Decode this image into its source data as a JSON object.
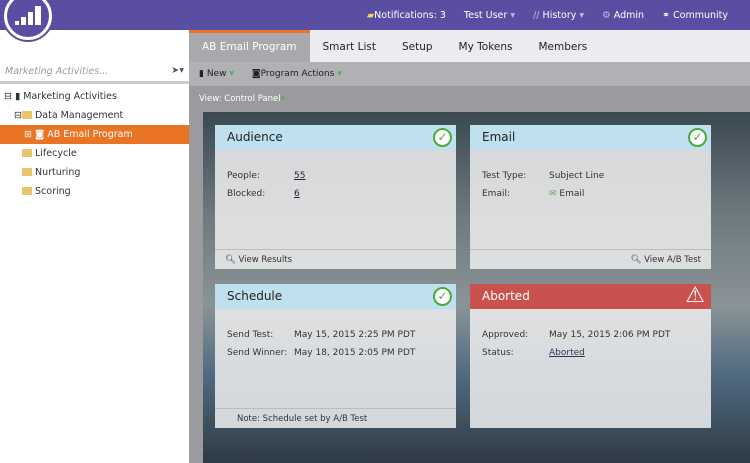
{
  "topnav": {
    "notifications": "Notifications: 3",
    "user": "Test User",
    "history": "History",
    "admin": "Admin",
    "community": "Community"
  },
  "sidebar": {
    "search_placeholder": "Marketing Activities...",
    "items": [
      {
        "label": "Marketing Activities"
      },
      {
        "label": "Data Management"
      },
      {
        "label": "AB Email Program"
      },
      {
        "label": "Lifecycle"
      },
      {
        "label": "Nurturing"
      },
      {
        "label": "Scoring"
      }
    ]
  },
  "tabs": [
    "AB Email Program",
    "Smart List",
    "Setup",
    "My Tokens",
    "Members"
  ],
  "toolbar": {
    "new": "New",
    "program_actions": "Program Actions"
  },
  "view": "View: Control Panel",
  "audience": {
    "title": "Audience",
    "people_label": "People:",
    "people": "55",
    "blocked_label": "Blocked:",
    "blocked": "6",
    "footer": "View Results"
  },
  "email": {
    "title": "Email",
    "test_type_label": "Test Type:",
    "test_type": "Subject Line",
    "email_label": "Email:",
    "email": "Email",
    "footer": "View A/B Test"
  },
  "schedule": {
    "title": "Schedule",
    "send_test_label": "Send Test:",
    "send_test": "May 15, 2015 2:25 PM PDT",
    "send_winner_label": "Send Winner:",
    "send_winner": "May 18, 2015 2:05 PM PDT",
    "footer": "Note: Schedule set by A/B Test"
  },
  "aborted": {
    "title": "Aborted",
    "approved_label": "Approved:",
    "approved": "May 15, 2015 2:06 PM PDT",
    "status_label": "Status:",
    "status": "Aborted"
  },
  "colors": {
    "brand": "#5a4ea2",
    "accent": "#e87424",
    "ok": "#4caa3a",
    "error": "#c9524f"
  }
}
